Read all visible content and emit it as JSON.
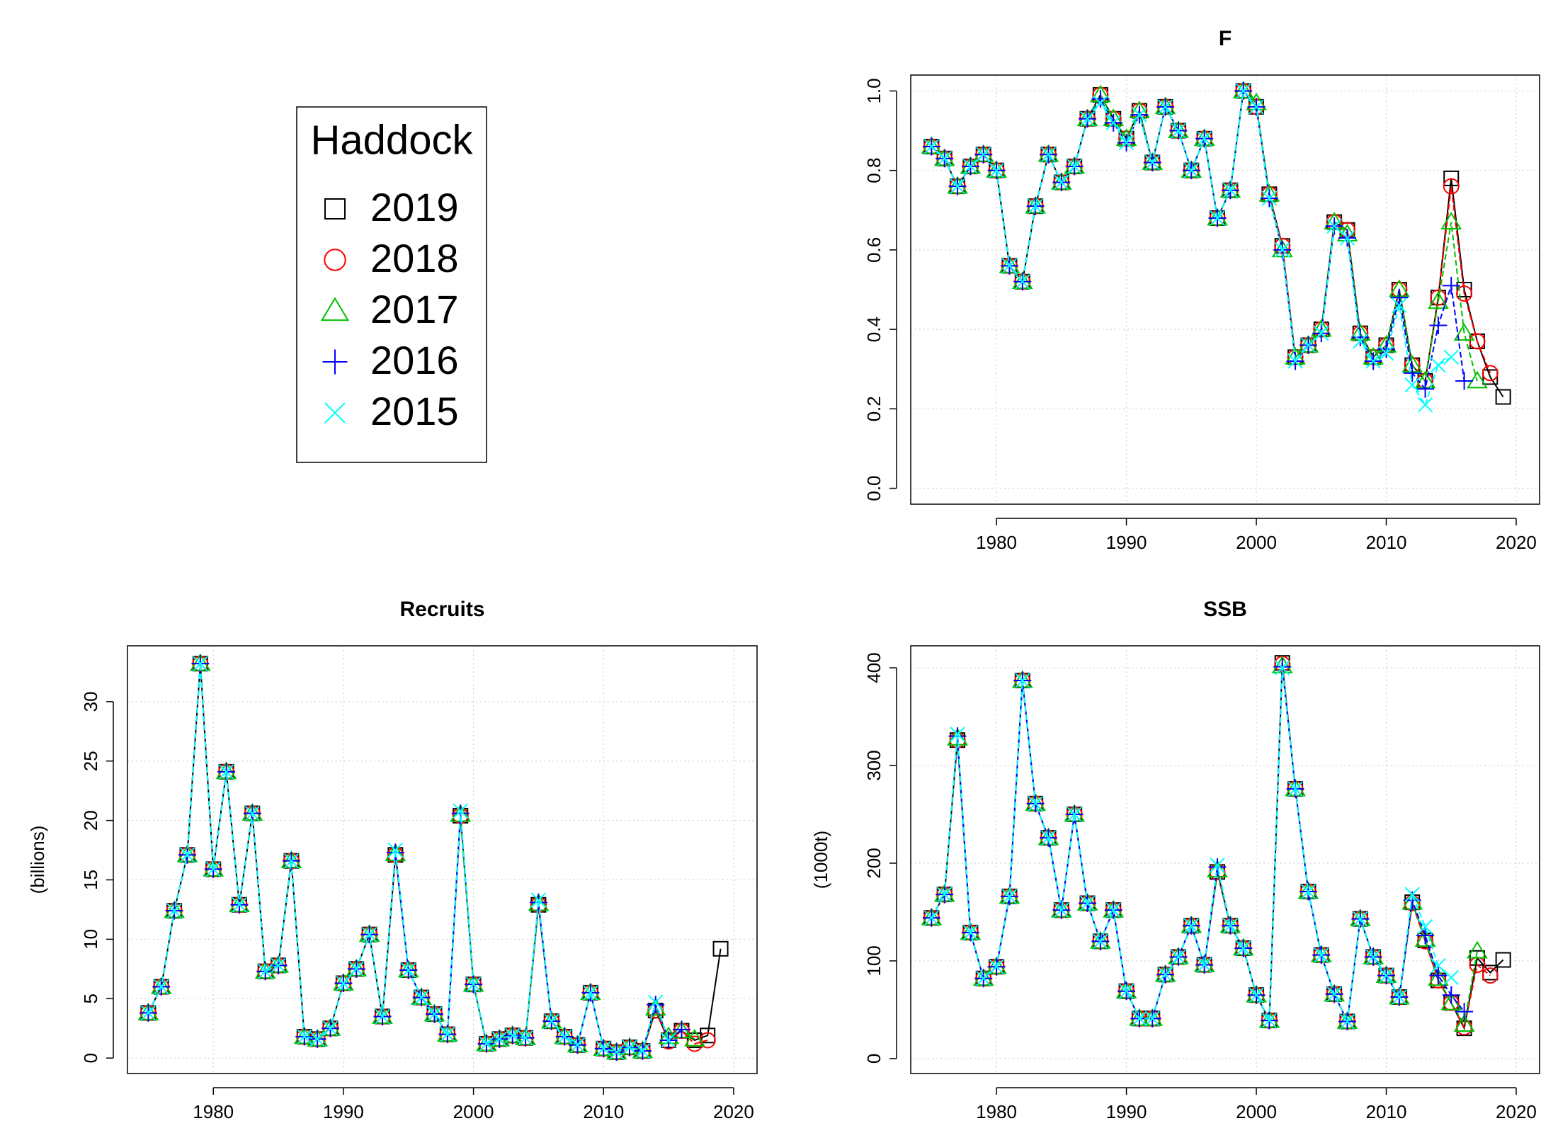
{
  "legend_title": "Haddock",
  "chart_data": [
    {
      "type": "line",
      "title": "F",
      "x": [
        1975,
        1976,
        1977,
        1978,
        1979,
        1980,
        1981,
        1982,
        1983,
        1984,
        1985,
        1986,
        1987,
        1988,
        1989,
        1990,
        1991,
        1992,
        1993,
        1994,
        1995,
        1996,
        1997,
        1998,
        1999,
        2000,
        2001,
        2002,
        2003,
        2004,
        2005,
        2006,
        2007,
        2008,
        2009,
        2010,
        2011,
        2012,
        2013,
        2014,
        2015,
        2016,
        2017,
        2018,
        2019
      ],
      "xlim": [
        1973.4,
        2021.8
      ],
      "xticks": [
        1980,
        1990,
        2000,
        2010,
        2020
      ],
      "ylim": [
        -0.04,
        1.04
      ],
      "yticks": [
        {
          "value": 0,
          "label": "0.0"
        },
        0.2,
        0.4,
        0.6,
        0.8,
        {
          "value": 1,
          "label": "1.0"
        }
      ],
      "grid": true,
      "series": [
        {
          "name": "2019",
          "color": "#000000",
          "marker": "square",
          "values": [
            0.86,
            0.83,
            0.76,
            0.81,
            0.84,
            0.8,
            0.56,
            0.52,
            0.71,
            0.84,
            0.77,
            0.81,
            0.93,
            0.99,
            0.93,
            0.88,
            0.95,
            0.82,
            0.96,
            0.9,
            0.8,
            0.88,
            0.68,
            0.75,
            1,
            0.96,
            0.74,
            0.61,
            0.33,
            0.36,
            0.4,
            0.67,
            0.65,
            0.39,
            0.33,
            0.36,
            0.5,
            0.31,
            0.27,
            0.48,
            0.78,
            0.5,
            0.37,
            0.28,
            0.23
          ]
        },
        {
          "name": "2018",
          "color": "#ff0000",
          "marker": "circle",
          "values": [
            0.86,
            0.83,
            0.76,
            0.81,
            0.84,
            0.8,
            0.56,
            0.52,
            0.71,
            0.84,
            0.77,
            0.81,
            0.93,
            0.99,
            0.93,
            0.88,
            0.95,
            0.82,
            0.96,
            0.9,
            0.8,
            0.88,
            0.68,
            0.75,
            1,
            0.96,
            0.74,
            0.61,
            0.33,
            0.36,
            0.4,
            0.67,
            0.65,
            0.39,
            0.33,
            0.36,
            0.5,
            0.31,
            0.27,
            0.48,
            0.76,
            0.49,
            0.37,
            0.29,
            null
          ]
        },
        {
          "name": "2017",
          "color": "#00c000",
          "marker": "triangle",
          "values": [
            0.86,
            0.83,
            0.76,
            0.81,
            0.84,
            0.8,
            0.56,
            0.52,
            0.71,
            0.84,
            0.77,
            0.81,
            0.93,
            0.99,
            0.93,
            0.88,
            0.95,
            0.82,
            0.96,
            0.9,
            0.8,
            0.88,
            0.68,
            0.75,
            1,
            0.97,
            0.74,
            0.6,
            0.33,
            0.36,
            0.4,
            0.67,
            0.64,
            0.39,
            0.33,
            0.36,
            0.5,
            0.31,
            0.27,
            0.47,
            0.67,
            0.39,
            0.27,
            null,
            null
          ]
        },
        {
          "name": "2016",
          "color": "#0000ff",
          "marker": "plus",
          "values": [
            0.86,
            0.83,
            0.76,
            0.81,
            0.84,
            0.8,
            0.56,
            0.52,
            0.71,
            0.84,
            0.77,
            0.81,
            0.93,
            0.98,
            0.92,
            0.87,
            0.94,
            0.82,
            0.96,
            0.9,
            0.8,
            0.88,
            0.68,
            0.75,
            1,
            0.96,
            0.73,
            0.6,
            0.32,
            0.36,
            0.39,
            0.66,
            0.63,
            0.38,
            0.32,
            0.35,
            0.48,
            0.29,
            0.25,
            0.41,
            0.51,
            0.27,
            null,
            null,
            null
          ]
        },
        {
          "name": "2015",
          "color": "#00ffff",
          "marker": "x",
          "values": [
            0.86,
            0.83,
            0.76,
            0.81,
            0.84,
            0.8,
            0.56,
            0.52,
            0.71,
            0.84,
            0.77,
            0.81,
            0.93,
            0.97,
            0.92,
            0.87,
            0.94,
            0.82,
            0.96,
            0.9,
            0.8,
            0.88,
            0.68,
            0.75,
            1,
            0.96,
            0.73,
            0.6,
            0.32,
            0.36,
            0.39,
            0.66,
            0.63,
            0.37,
            0.32,
            0.34,
            0.46,
            0.26,
            0.21,
            0.31,
            0.33,
            null,
            null,
            null,
            null
          ]
        }
      ]
    },
    {
      "type": "line",
      "title": "Recruits",
      "ylabel": "(billions)",
      "x": [
        1975,
        1976,
        1977,
        1978,
        1979,
        1980,
        1981,
        1982,
        1983,
        1984,
        1985,
        1986,
        1987,
        1988,
        1989,
        1990,
        1991,
        1992,
        1993,
        1994,
        1995,
        1996,
        1997,
        1998,
        1999,
        2000,
        2001,
        2002,
        2003,
        2004,
        2005,
        2006,
        2007,
        2008,
        2009,
        2010,
        2011,
        2012,
        2013,
        2014,
        2015,
        2016,
        2017,
        2018,
        2019
      ],
      "xlim": [
        1973.4,
        2021.8
      ],
      "xticks": [
        1980,
        1990,
        2000,
        2010,
        2020
      ],
      "ylim": [
        -1.3,
        34.7
      ],
      "yticks": [
        0,
        5,
        10,
        15,
        20,
        25,
        30
      ],
      "grid": true,
      "series": [
        {
          "color": "#000000",
          "marker": "square",
          "values": [
            3.8,
            6,
            12.4,
            17.1,
            33.2,
            15.9,
            24.1,
            12.9,
            20.6,
            7.3,
            7.8,
            16.6,
            1.8,
            1.6,
            2.5,
            6.3,
            7.5,
            10.4,
            3.5,
            17.1,
            7.4,
            5.1,
            3.7,
            2,
            20.4,
            6.2,
            1.2,
            1.6,
            1.9,
            1.7,
            12.9,
            3.1,
            1.8,
            1.1,
            5.5,
            0.8,
            0.5,
            0.9,
            0.6,
            4,
            1.5,
            2.3,
            1.5,
            1.9,
            9.2
          ]
        },
        {
          "color": "#ff0000",
          "marker": "circle",
          "values": [
            3.8,
            6,
            12.4,
            17.1,
            33.2,
            15.9,
            24.1,
            12.9,
            20.6,
            7.3,
            7.8,
            16.6,
            1.8,
            1.6,
            2.5,
            6.3,
            7.5,
            10.4,
            3.5,
            17.1,
            7.4,
            5.1,
            3.7,
            2,
            20.4,
            6.2,
            1.2,
            1.6,
            1.9,
            1.7,
            12.9,
            3.1,
            1.8,
            1.1,
            5.5,
            0.8,
            0.5,
            0.9,
            0.6,
            4,
            1.4,
            2.3,
            1.2,
            1.5,
            null
          ]
        },
        {
          "color": "#00c000",
          "marker": "triangle",
          "values": [
            3.8,
            6,
            12.4,
            17.1,
            33.2,
            15.9,
            24.1,
            12.9,
            20.6,
            7.3,
            7.8,
            16.6,
            1.8,
            1.6,
            2.5,
            6.3,
            7.5,
            10.4,
            3.5,
            17.2,
            7.4,
            5.1,
            3.7,
            2,
            20.5,
            6.2,
            1.2,
            1.6,
            1.9,
            1.7,
            13,
            3.1,
            1.8,
            1.1,
            5.5,
            0.8,
            0.5,
            0.9,
            0.6,
            4.2,
            1.8,
            2.3,
            1.6,
            null,
            null
          ]
        },
        {
          "color": "#0000ff",
          "marker": "plus",
          "values": [
            3.8,
            6,
            12.4,
            17.1,
            33.2,
            15.9,
            24.1,
            12.9,
            20.6,
            7.3,
            7.8,
            16.6,
            1.8,
            1.6,
            2.5,
            6.3,
            7.5,
            10.4,
            3.5,
            17.3,
            7.4,
            5.1,
            3.7,
            2,
            20.6,
            6.2,
            1.2,
            1.6,
            1.9,
            1.7,
            13.1,
            3.1,
            1.8,
            1.1,
            5.5,
            0.8,
            0.5,
            0.9,
            0.6,
            4.5,
            1.5,
            2.4,
            null,
            null,
            null
          ]
        },
        {
          "color": "#00ffff",
          "marker": "x",
          "values": [
            3.8,
            6,
            12.4,
            17.1,
            33.2,
            15.9,
            24.1,
            12.9,
            20.6,
            7.3,
            7.8,
            16.6,
            1.8,
            1.6,
            2.5,
            6.3,
            7.5,
            10.4,
            3.5,
            17.5,
            7.4,
            5.1,
            3.7,
            2,
            20.8,
            6.2,
            1.2,
            1.6,
            1.9,
            1.7,
            13.3,
            3.1,
            1.8,
            1.1,
            5.5,
            0.8,
            0.5,
            0.9,
            0.6,
            4.7,
            1.5,
            null,
            null,
            null,
            null
          ]
        }
      ]
    },
    {
      "type": "line",
      "title": "SSB",
      "ylabel": "(1000t)",
      "x": [
        1975,
        1976,
        1977,
        1978,
        1979,
        1980,
        1981,
        1982,
        1983,
        1984,
        1985,
        1986,
        1987,
        1988,
        1989,
        1990,
        1991,
        1992,
        1993,
        1994,
        1995,
        1996,
        1997,
        1998,
        1999,
        2000,
        2001,
        2002,
        2003,
        2004,
        2005,
        2006,
        2007,
        2008,
        2009,
        2010,
        2011,
        2012,
        2013,
        2014,
        2015,
        2016,
        2017,
        2018,
        2019
      ],
      "xlim": [
        1973.4,
        2021.8
      ],
      "xticks": [
        1980,
        1990,
        2000,
        2010,
        2020
      ],
      "ylim": [
        -15.3,
        422.5
      ],
      "yticks": [
        0,
        100,
        200,
        300,
        400
      ],
      "grid": true,
      "series": [
        {
          "color": "#000000",
          "marker": "square",
          "values": [
            144,
            168,
            326,
            129,
            82,
            94,
            166,
            387,
            261,
            226,
            152,
            250,
            159,
            120,
            152,
            69,
            41,
            41,
            86,
            104,
            136,
            96,
            191,
            136,
            113,
            65,
            39,
            405,
            276,
            171,
            106,
            66,
            38,
            143,
            104,
            85,
            63,
            160,
            121,
            80,
            57,
            31,
            103,
            88,
            101
          ]
        },
        {
          "color": "#ff0000",
          "marker": "circle",
          "values": [
            144,
            168,
            326,
            129,
            82,
            94,
            166,
            387,
            261,
            226,
            152,
            250,
            159,
            120,
            152,
            69,
            41,
            41,
            86,
            104,
            136,
            96,
            191,
            136,
            113,
            65,
            39,
            404,
            276,
            171,
            106,
            66,
            38,
            143,
            104,
            85,
            63,
            159,
            120,
            80,
            57,
            32,
            96,
            85,
            null
          ]
        },
        {
          "color": "#00c000",
          "marker": "triangle",
          "values": [
            144,
            168,
            328,
            129,
            82,
            94,
            166,
            387,
            261,
            226,
            152,
            250,
            159,
            120,
            152,
            69,
            41,
            41,
            86,
            104,
            136,
            96,
            193,
            136,
            113,
            65,
            39,
            402,
            276,
            171,
            106,
            66,
            38,
            143,
            104,
            85,
            63,
            160,
            122,
            82,
            57,
            35,
            110,
            null,
            null
          ]
        },
        {
          "color": "#0000ff",
          "marker": "plus",
          "values": [
            144,
            168,
            330,
            129,
            82,
            94,
            166,
            387,
            261,
            226,
            152,
            250,
            159,
            120,
            152,
            69,
            41,
            41,
            86,
            104,
            136,
            96,
            196,
            136,
            113,
            65,
            39,
            401,
            276,
            171,
            106,
            66,
            38,
            143,
            104,
            85,
            63,
            162,
            126,
            85,
            65,
            48,
            null,
            null,
            null
          ]
        },
        {
          "color": "#00ffff",
          "marker": "x",
          "values": [
            144,
            168,
            332,
            129,
            82,
            94,
            166,
            387,
            261,
            226,
            152,
            250,
            159,
            120,
            152,
            69,
            41,
            41,
            86,
            104,
            136,
            96,
            198,
            136,
            113,
            65,
            39,
            400,
            276,
            171,
            106,
            66,
            38,
            143,
            104,
            85,
            63,
            168,
            135,
            95,
            83,
            null,
            null,
            null,
            null
          ]
        }
      ]
    }
  ]
}
